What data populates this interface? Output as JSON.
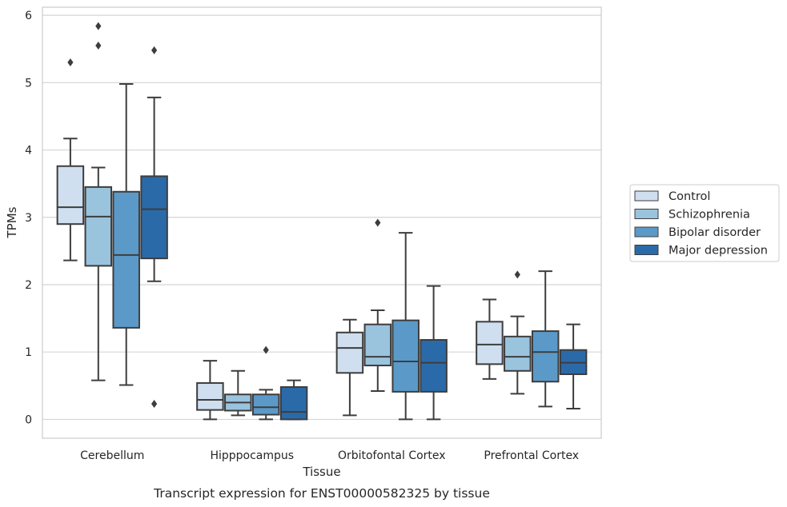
{
  "chart_data": {
    "type": "box",
    "title": "",
    "caption": "Transcript expression for ENST00000582325 by tissue",
    "xlabel": "Tissue",
    "ylabel": "TPMs",
    "ylim": [
      -0.28,
      6.12
    ],
    "yticks": [
      0,
      1,
      2,
      3,
      4,
      5,
      6
    ],
    "grid": "horizontal",
    "legend_position": "right",
    "categories": [
      "Cerebellum",
      "Hipppocampus",
      "Orbitofontal Cortex",
      "Prefrontal Cortex"
    ],
    "series": [
      {
        "name": "Control",
        "color": "#cfdff0",
        "boxes": [
          {
            "whislo": 2.36,
            "q1": 2.9,
            "med": 3.15,
            "q3": 3.76,
            "whishi": 4.17,
            "fliers": [
              5.3
            ]
          },
          {
            "whislo": 0.0,
            "q1": 0.14,
            "med": 0.29,
            "q3": 0.54,
            "whishi": 0.87,
            "fliers": []
          },
          {
            "whislo": 0.06,
            "q1": 0.69,
            "med": 1.06,
            "q3": 1.29,
            "whishi": 1.48,
            "fliers": []
          },
          {
            "whislo": 0.6,
            "q1": 0.82,
            "med": 1.11,
            "q3": 1.45,
            "whishi": 1.78,
            "fliers": []
          }
        ]
      },
      {
        "name": "Schizophrenia",
        "color": "#9ac3de",
        "boxes": [
          {
            "whislo": 0.58,
            "q1": 2.28,
            "med": 3.01,
            "q3": 3.45,
            "whishi": 3.74,
            "fliers": [
              5.55,
              5.84
            ]
          },
          {
            "whislo": 0.06,
            "q1": 0.13,
            "med": 0.25,
            "q3": 0.37,
            "whishi": 0.72,
            "fliers": []
          },
          {
            "whislo": 0.42,
            "q1": 0.8,
            "med": 0.93,
            "q3": 1.41,
            "whishi": 1.62,
            "fliers": [
              2.92
            ]
          },
          {
            "whislo": 0.38,
            "q1": 0.72,
            "med": 0.93,
            "q3": 1.23,
            "whishi": 1.53,
            "fliers": [
              2.15
            ]
          }
        ]
      },
      {
        "name": "Bipolar disorder",
        "color": "#5b9ac8",
        "boxes": [
          {
            "whislo": 0.51,
            "q1": 1.36,
            "med": 2.44,
            "q3": 3.38,
            "whishi": 4.98,
            "fliers": []
          },
          {
            "whislo": 0.0,
            "q1": 0.07,
            "med": 0.18,
            "q3": 0.37,
            "whishi": 0.44,
            "fliers": [
              1.03
            ]
          },
          {
            "whislo": 0.0,
            "q1": 0.41,
            "med": 0.86,
            "q3": 1.47,
            "whishi": 2.77,
            "fliers": []
          },
          {
            "whislo": 0.19,
            "q1": 0.56,
            "med": 1.0,
            "q3": 1.31,
            "whishi": 2.2,
            "fliers": []
          }
        ]
      },
      {
        "name": "Major depression",
        "color": "#2b6aa8",
        "boxes": [
          {
            "whislo": 2.05,
            "q1": 2.39,
            "med": 3.12,
            "q3": 3.61,
            "whishi": 4.78,
            "fliers": [
              5.48,
              0.23
            ]
          },
          {
            "whislo": 0.0,
            "q1": 0.0,
            "med": 0.11,
            "q3": 0.48,
            "whishi": 0.58,
            "fliers": []
          },
          {
            "whislo": 0.0,
            "q1": 0.41,
            "med": 0.84,
            "q3": 1.18,
            "whishi": 1.98,
            "fliers": []
          },
          {
            "whislo": 0.16,
            "q1": 0.67,
            "med": 0.84,
            "q3": 1.03,
            "whishi": 1.41,
            "fliers": []
          }
        ]
      }
    ]
  }
}
